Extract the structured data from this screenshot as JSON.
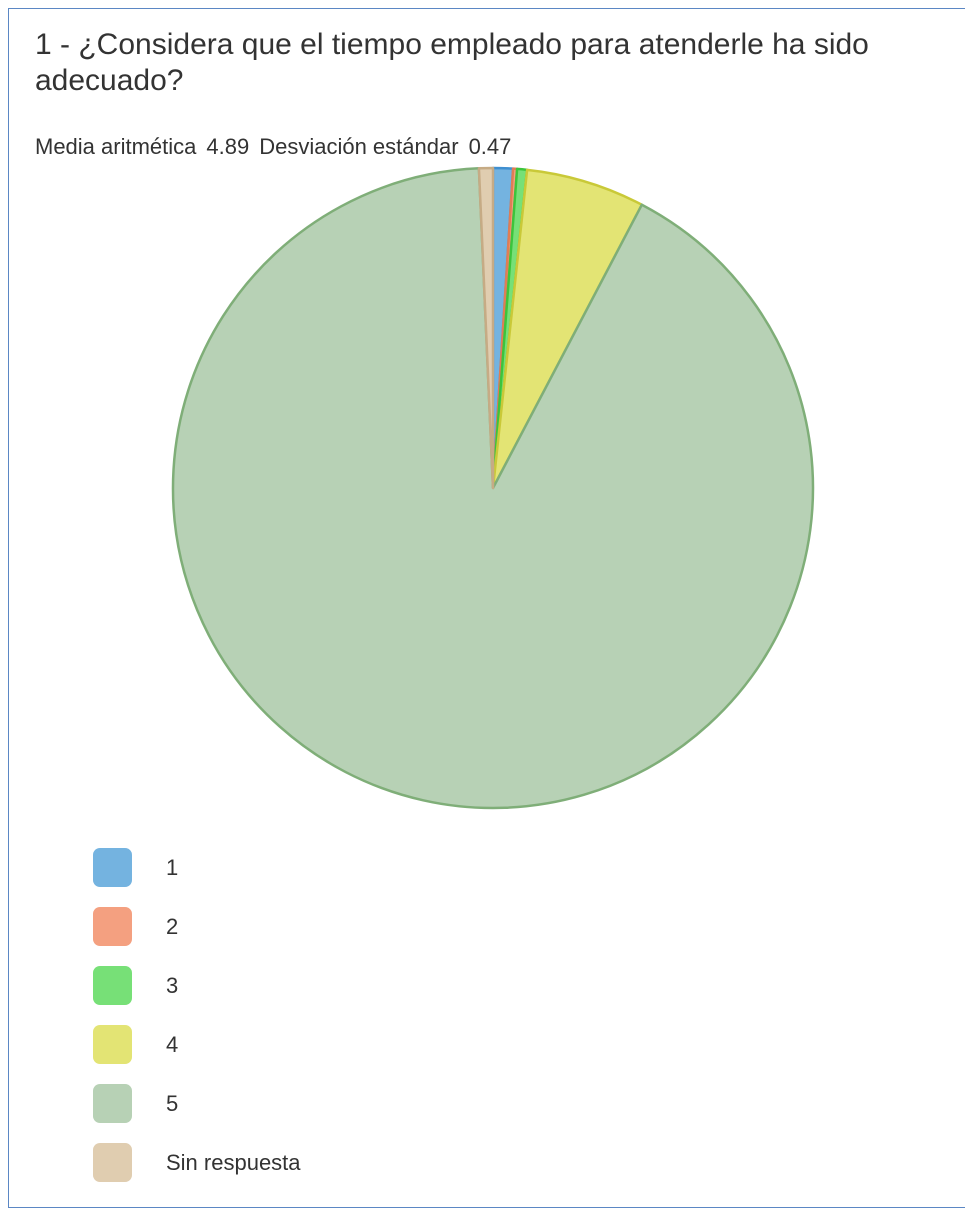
{
  "question": {
    "number": "1 -",
    "text": "¿Considera que el tiempo empleado para atenderle ha sido adecuado?"
  },
  "stats": {
    "mean_label": "Media aritmética",
    "mean_value": "4.89",
    "std_label": "Desviación estándar",
    "std_value": "0.47"
  },
  "chart_data": {
    "type": "pie",
    "categories": [
      "1",
      "2",
      "3",
      "4",
      "5",
      "Sin respuesta"
    ],
    "values": [
      1.0,
      0.2,
      0.5,
      6.0,
      91.6,
      0.7
    ],
    "colors": [
      "#74b3e0",
      "#f4a080",
      "#77e077",
      "#e3e474",
      "#b7d1b5",
      "#e0cdb0"
    ],
    "stroke_colors": [
      "#3f8fd0",
      "#e07d55",
      "#3cc43c",
      "#c9c938",
      "#7fae78",
      "#c6ab85"
    ],
    "legend": "bottom-left",
    "title": "",
    "start_angle": "top",
    "direction": "clockwise"
  }
}
